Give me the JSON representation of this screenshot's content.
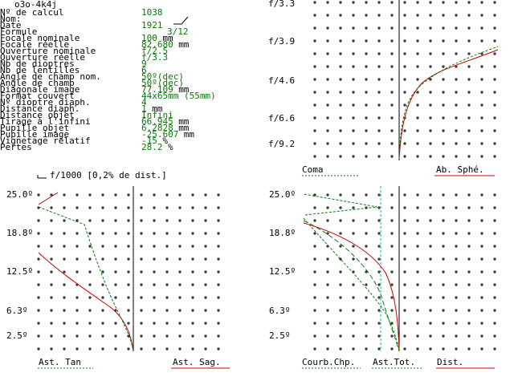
{
  "window": {
    "title": "o3o-4k4j"
  },
  "params": [
    {
      "label": "Nº de calcul",
      "value": "1038",
      "unit": ""
    },
    {
      "label": "Nom:",
      "value": "",
      "unit": ""
    },
    {
      "label": "Date",
      "value": "1921",
      "unit": ""
    },
    {
      "label": "Formule",
      "value": "3/12",
      "unit": ""
    },
    {
      "label": "Focale nominale",
      "value": "100",
      "unit": "mm"
    },
    {
      "label": "Focale réelle",
      "value": "82.680",
      "unit": "mm"
    },
    {
      "label": "Ouverture nominale",
      "value": "f/2.5",
      "unit": ""
    },
    {
      "label": "Ouverture réelle",
      "value": "f/3.3",
      "unit": ""
    },
    {
      "label": "Nb de dioptres",
      "value": "9",
      "unit": ""
    },
    {
      "label": "Nb de lentilles",
      "value": "6",
      "unit": ""
    },
    {
      "label": "Angle de champ nom.",
      "value": "50º(dec)",
      "unit": ""
    },
    {
      "label": "Angle de champ",
      "value": "50º(dec)",
      "unit": ""
    },
    {
      "label": "Diagonale image",
      "value": "77.109",
      "unit": "mm"
    },
    {
      "label": "Format couvert",
      "value": "44x65mm (55mm)",
      "unit": ""
    },
    {
      "label": "Nº dioptre diaph.",
      "value": "4",
      "unit": ""
    },
    {
      "label": "Distance diaph.",
      "value": "1",
      "unit": "mm"
    },
    {
      "label": "Distance objet",
      "value": "Infini",
      "unit": ""
    },
    {
      "label": "Tirage à l'infini",
      "value": "66.945",
      "unit": "mm"
    },
    {
      "label": "Pupille objet",
      "value": "6.2828",
      "unit": "mm"
    },
    {
      "label": "Pupille image",
      "value": "-25.607",
      "unit": "mm"
    },
    {
      "label": "Vignetage relatif",
      "value": "-15",
      "unit": "%"
    },
    {
      "label": "Pertes",
      "value": "28.2",
      "unit": "%"
    }
  ],
  "top_chart": {
    "y_labels": [
      "f/3.3",
      "f/3.9",
      "f/4.6",
      "f/6.6",
      "f/9.2"
    ],
    "legend_left": "Coma",
    "legend_right": "Ab. Sphé."
  },
  "scale_note": "f/1000 [0,2% de dist.]",
  "left_chart": {
    "y_labels": [
      "25.0º",
      "18.8º",
      "12.5º",
      "6.3º",
      "2.5º"
    ],
    "legend_left": "Ast. Tan",
    "legend_right": "Ast. Sag."
  },
  "right_chart": {
    "y_labels": [
      "25.0º",
      "18.8º",
      "12.5º",
      "6.3º",
      "2.5º"
    ],
    "legend_1": "Courb.Chp.",
    "legend_2": "Ast.Tot.",
    "legend_3": "Dist."
  },
  "colors": {
    "value_green": "#0a7a0a",
    "curve_red": "#c80000",
    "curve_green": "#0a7a0a",
    "dist_cyan": "#00c0c0"
  }
}
